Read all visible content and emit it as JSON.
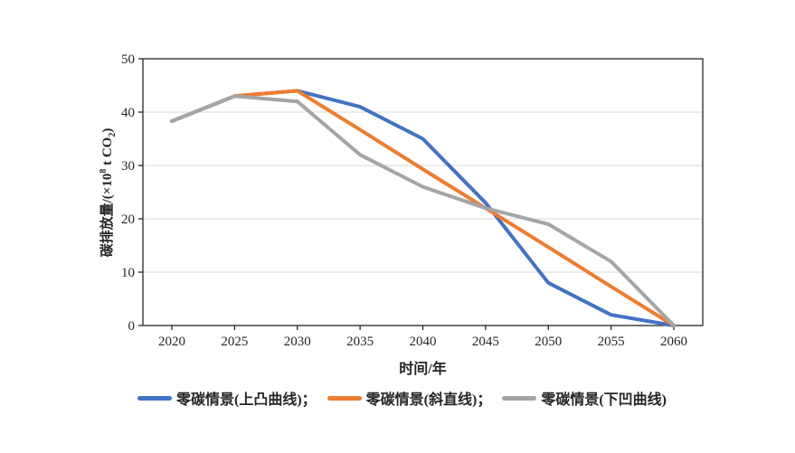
{
  "chart_data": {
    "type": "line",
    "title": "",
    "x": [
      2020,
      2025,
      2030,
      2035,
      2040,
      2045,
      2050,
      2055,
      2060
    ],
    "xlabel": "时间/年",
    "ylabel": "碳排放量/(×10⁸ t CO₂)",
    "ylabel_parts": {
      "prefix": "碳排放量/(×10",
      "sup": "8",
      "mid": " t CO",
      "sub": "2",
      "suffix": ")"
    },
    "ylim": [
      0,
      50
    ],
    "yticks": [
      0,
      10,
      20,
      30,
      40,
      50
    ],
    "grid": "horizontal-only",
    "legend_position": "bottom",
    "series": [
      {
        "name": "零碳情景(上凸曲线)",
        "color": "#4472C4",
        "values": [
          38.3,
          43,
          44,
          41,
          35,
          23,
          8,
          2,
          0
        ]
      },
      {
        "name": "零碳情景(斜直线)",
        "color": "#ED7D31",
        "values": [
          38.3,
          43,
          44,
          36.7,
          29.3,
          22,
          14.7,
          7.3,
          0
        ]
      },
      {
        "name": "零碳情景(下凹曲线)",
        "color": "#A5A5A5",
        "values": [
          38.3,
          43,
          42,
          32,
          26,
          22,
          19,
          12,
          0
        ]
      }
    ]
  },
  "legend": {
    "items": [
      {
        "label": "零碳情景(上凸曲线)；",
        "color": "#4472C4"
      },
      {
        "label": "零碳情景(斜直线)；",
        "color": "#ED7D31"
      },
      {
        "label": "零碳情景(下凹曲线)",
        "color": "#A5A5A5"
      }
    ]
  },
  "colors": {
    "axis": "#262626",
    "gridline": "#D9D9D9",
    "background": "#FFFFFF",
    "text": "#262626"
  }
}
